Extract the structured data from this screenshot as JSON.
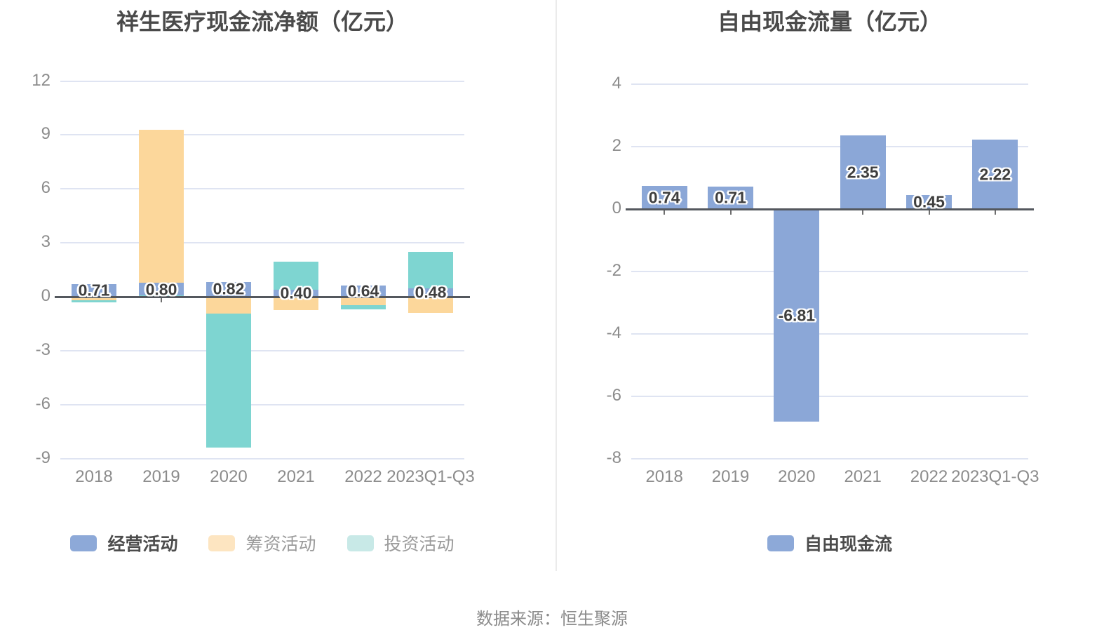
{
  "footer": "数据来源：恒生聚源",
  "colors": {
    "background": "#FFFFFF",
    "grid": "#DFE4F2",
    "axis_line": "#54585E",
    "category_tick": "#6E6E6E",
    "axis_label": "#8C8C8C",
    "title": "#4A4A4A",
    "bar_label": "#3F3F3F",
    "bar_label_outline": "#FFFFFF",
    "footer_text": "#8A8A8A",
    "divider": "#EBEBEB"
  },
  "chart_data": [
    {
      "type": "bar",
      "title": "祥生医疗现金流净额（亿元）",
      "categories": [
        "2018",
        "2019",
        "2020",
        "2021",
        "2022",
        "2023Q1-Q3"
      ],
      "series": [
        {
          "name": "经营活动",
          "color": "#8BA7D7",
          "legend_swatch": "#8DA9D8",
          "legend_text_color": "#4C4C4C",
          "show_labels": true,
          "values": [
            0.71,
            0.8,
            0.82,
            0.4,
            0.64,
            0.48
          ]
        },
        {
          "name": "筹资活动",
          "color": "#FCD79B",
          "legend_swatch": "#FDE5C1",
          "legend_text_color": "#9B9B9B",
          "show_labels": false,
          "values": [
            -0.2,
            9.3,
            -0.95,
            -0.75,
            -0.45,
            -0.9
          ]
        },
        {
          "name": "投资活动",
          "color": "#7ED5D1",
          "legend_swatch": "#C8E9E7",
          "legend_text_color": "#9B9B9B",
          "show_labels": false,
          "values": [
            -0.32,
            0.07,
            -8.4,
            1.95,
            -0.72,
            2.5
          ]
        }
      ],
      "y_ticks": [
        12,
        9,
        6,
        3,
        0,
        -3,
        -6,
        -9
      ],
      "ylim": [
        -9,
        12
      ],
      "grid": true,
      "legend_position": "bottom",
      "bar_overlap": "series overlap at same x, operating drawn in front"
    },
    {
      "type": "bar",
      "title": "自由现金流量（亿元）",
      "categories": [
        "2018",
        "2019",
        "2020",
        "2021",
        "2022",
        "2023Q1-Q3"
      ],
      "series": [
        {
          "name": "自由现金流",
          "color": "#8BA7D7",
          "legend_swatch": "#8DA9D8",
          "legend_text_color": "#4C4C4C",
          "show_labels": true,
          "values": [
            0.74,
            0.71,
            -6.81,
            2.35,
            0.45,
            2.22
          ]
        }
      ],
      "y_ticks": [
        4,
        2,
        0,
        -2,
        -4,
        -6,
        -8
      ],
      "ylim": [
        -8,
        4
      ],
      "grid": true,
      "legend_position": "bottom"
    }
  ]
}
